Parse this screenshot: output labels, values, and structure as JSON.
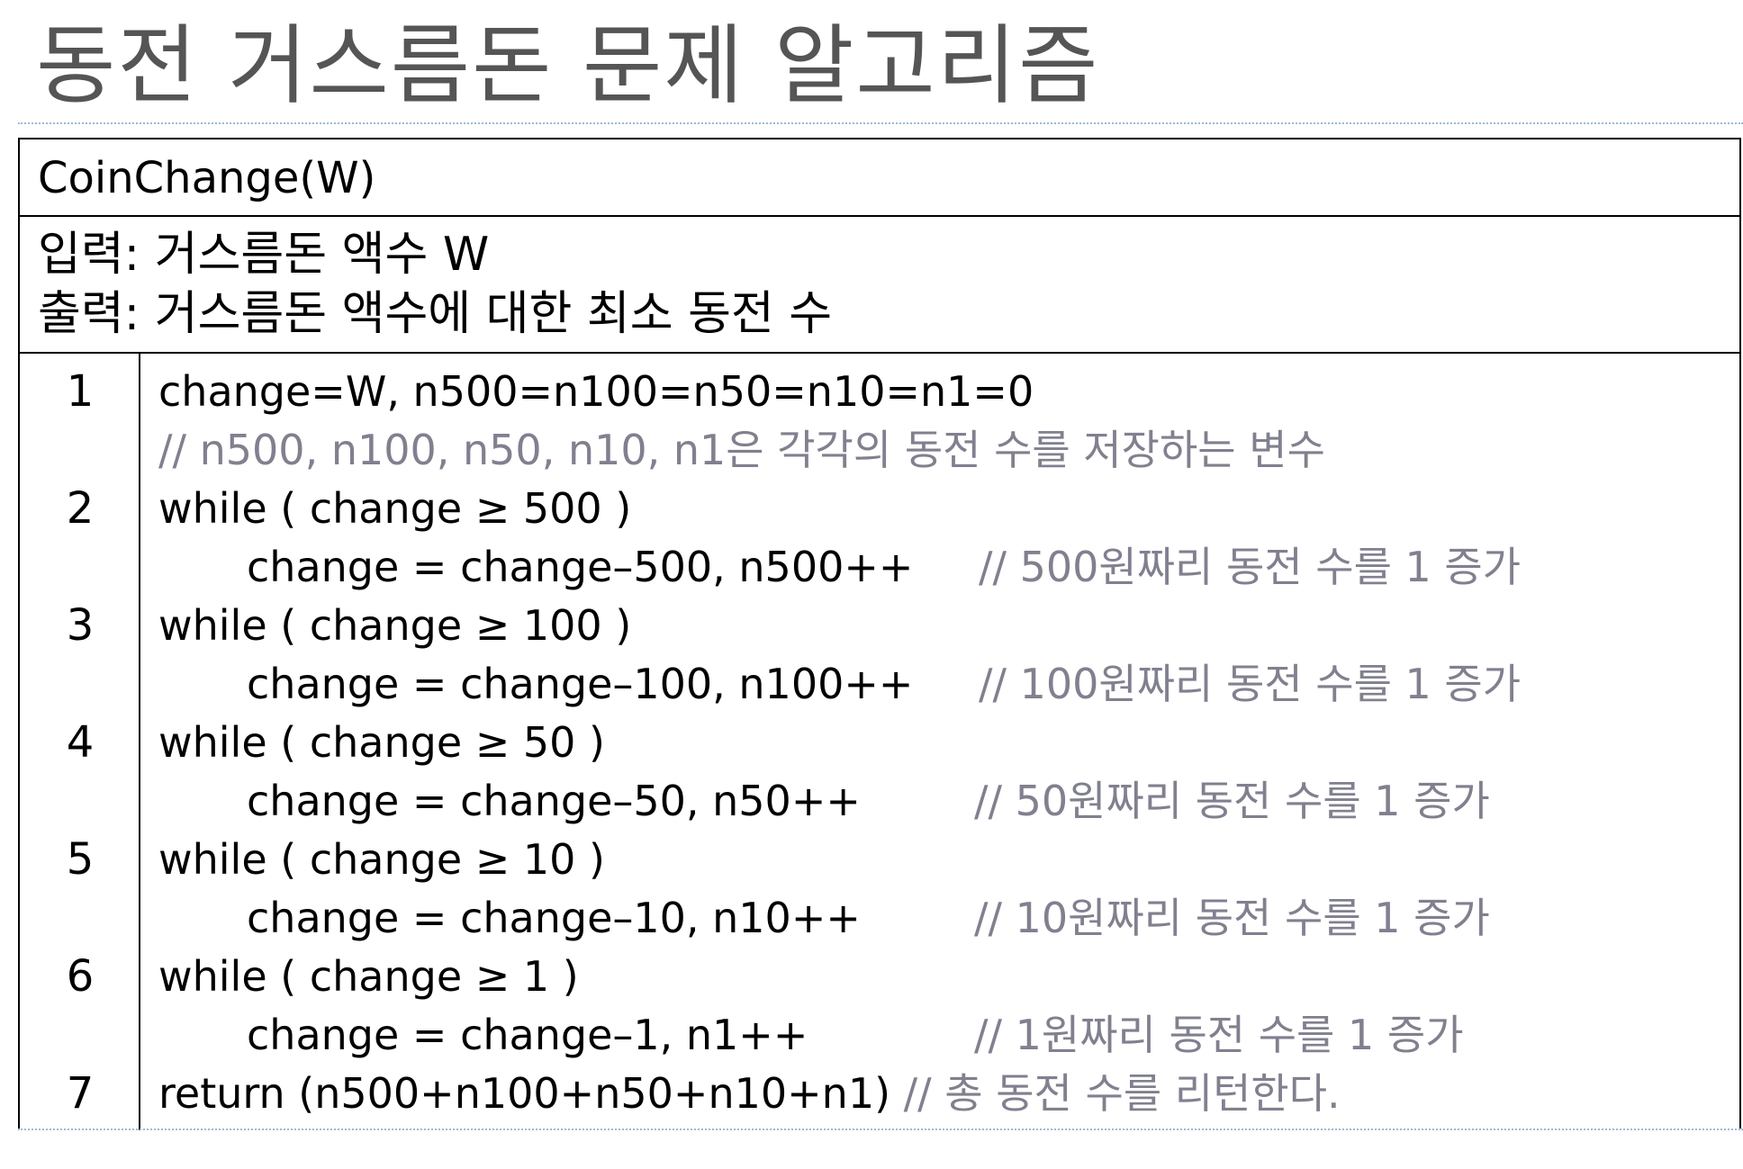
{
  "title": "동전 거스름돈 문제 알고리즘",
  "algorithm": {
    "name": "CoinChange(W)",
    "input_label": "입력:",
    "input_text": "거스름돈 액수 W",
    "output_label": "출력:",
    "output_text": "거스름돈 액수에 대한 최소 동전 수"
  },
  "lines": [
    {
      "num": "1",
      "code": "change=W, n500=n100=n50=n10=n1=0"
    },
    {
      "num": "",
      "comment": "// n500, n100, n50, n10, n1은 각각의 동전 수를 저장하는 변수"
    },
    {
      "num": "2",
      "code": "while ( change ≥ 500 )"
    },
    {
      "num": "",
      "code": "change = change–500, n500++",
      "comment": "// 500원짜리 동전 수를 1 증가"
    },
    {
      "num": "3",
      "code": "while ( change ≥ 100 )"
    },
    {
      "num": "",
      "code": "change = change–100, n100++",
      "comment": "// 100원짜리 동전 수를 1 증가"
    },
    {
      "num": "4",
      "code": "while ( change ≥ 50 )"
    },
    {
      "num": "",
      "code": "change = change–50, n50++",
      "comment": "// 50원짜리 동전 수를 1 증가"
    },
    {
      "num": "5",
      "code": "while ( change ≥ 10 )"
    },
    {
      "num": "",
      "code": "change = change–10, n10++",
      "comment": "// 10원짜리 동전 수를 1 증가"
    },
    {
      "num": "6",
      "code": "while ( change ≥ 1 )"
    },
    {
      "num": "",
      "code": "change = change–1, n1++",
      "comment": "// 1원짜리 동전 수를 1 증가"
    },
    {
      "num": "7",
      "code": "return (n500+n100+n50+n10+n1)",
      "comment": "// 총 동전 수를 리턴한다."
    }
  ]
}
